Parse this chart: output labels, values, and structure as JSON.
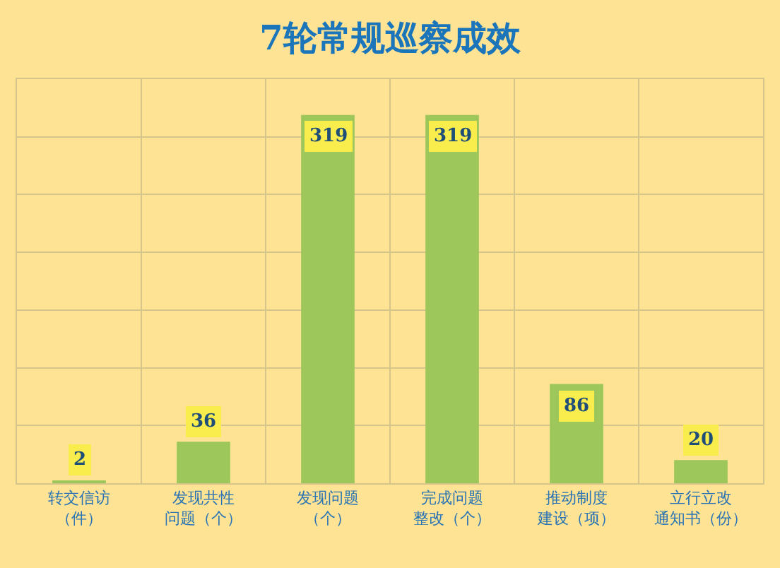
{
  "chart_data": {
    "type": "bar",
    "title": "7轮常规巡察成效",
    "categories": [
      "转交信访（件）",
      "发现共性问题（个）",
      "发现问题（个）",
      "完成问题整改（个）",
      "推动制度建设（项）",
      "立行立改通知书（份）"
    ],
    "values": [
      2,
      36,
      319,
      319,
      86,
      20
    ],
    "color": "#9dc75a",
    "data_labels": true,
    "ylim": [
      0,
      350
    ],
    "yticks": [
      {
        "value": 0,
        "label": null
      },
      {
        "value": 50,
        "label": null
      },
      {
        "value": 100,
        "label": null
      },
      {
        "value": 150,
        "label": null
      },
      {
        "value": 200,
        "label": null
      },
      {
        "value": 250,
        "label": null
      },
      {
        "value": 300,
        "label": null
      },
      {
        "value": 350,
        "label": null
      }
    ],
    "tick_labels": "x",
    "grid": true,
    "legend": false
  }
}
